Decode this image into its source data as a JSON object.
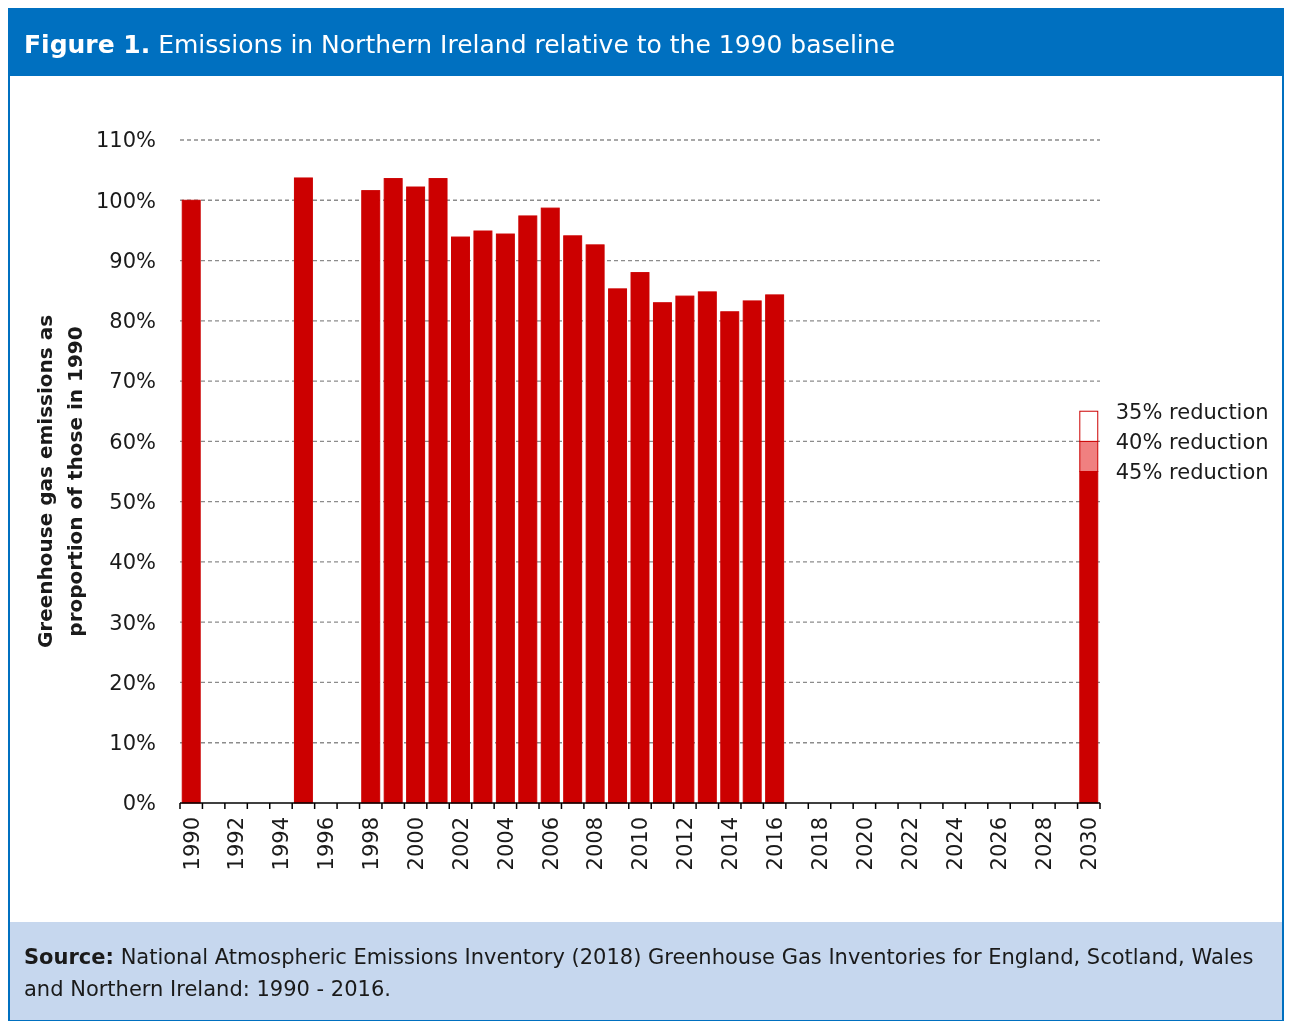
{
  "chart_data": {
    "type": "bar",
    "stacked": true,
    "title": "Figure 1. Emissions in Northern Ireland relative to the 1990 baseline",
    "ylabel": "Greenhouse gas emissions as proportion of those in 1990",
    "categories": [
      "1990",
      null,
      "1992",
      null,
      "1994",
      null,
      "1996",
      null,
      "1998",
      null,
      "2000",
      null,
      "2002",
      null,
      "2004",
      null,
      "2006",
      null,
      "2008",
      null,
      "2010",
      null,
      "2012",
      null,
      "2014",
      null,
      "2016",
      null,
      "2018",
      null,
      "2020",
      null,
      "2022",
      null,
      "2024",
      null,
      "2026",
      null,
      "2028",
      null,
      "2030"
    ],
    "series": [
      {
        "color": "#cc0000",
        "values": [
          100,
          null,
          null,
          null,
          null,
          103.7,
          null,
          null,
          101.6,
          103.6,
          102.2,
          103.6,
          93.9,
          94.9,
          94.4,
          97.4,
          98.7,
          94.1,
          92.6,
          85.3,
          88.0,
          83.0,
          84.1,
          84.8,
          81.5,
          83.3,
          84.3,
          null,
          null,
          null,
          null,
          null,
          null,
          null,
          null,
          null,
          null,
          null,
          null,
          null,
          55
        ]
      },
      {
        "color": "#f08080",
        "values": [
          null,
          null,
          null,
          null,
          null,
          null,
          null,
          null,
          null,
          null,
          null,
          null,
          null,
          null,
          null,
          null,
          null,
          null,
          null,
          null,
          null,
          null,
          null,
          null,
          null,
          null,
          null,
          null,
          null,
          null,
          null,
          null,
          null,
          null,
          null,
          null,
          null,
          null,
          null,
          null,
          5
        ]
      },
      {
        "color": "#ffffff",
        "values": [
          null,
          null,
          null,
          null,
          null,
          null,
          null,
          null,
          null,
          null,
          null,
          null,
          null,
          null,
          null,
          null,
          null,
          null,
          null,
          null,
          null,
          null,
          null,
          null,
          null,
          null,
          null,
          null,
          null,
          null,
          null,
          null,
          null,
          null,
          null,
          null,
          null,
          null,
          null,
          null,
          5
        ]
      }
    ],
    "ylim": [
      0,
      110
    ],
    "yticks": [
      {
        "value": 0,
        "label": "0%"
      },
      {
        "value": 10,
        "label": "10%"
      },
      {
        "value": 20,
        "label": "20%"
      },
      {
        "value": 30,
        "label": "30%"
      },
      {
        "value": 40,
        "label": "40%"
      },
      {
        "value": 50,
        "label": "50%"
      },
      {
        "value": 60,
        "label": "60%"
      },
      {
        "value": 70,
        "label": "70%"
      },
      {
        "value": 80,
        "label": "80%"
      },
      {
        "value": 90,
        "label": "90%"
      },
      {
        "value": 100,
        "label": "100%"
      },
      {
        "value": 110,
        "label": "110%"
      }
    ],
    "grid": "y",
    "annotations": [
      {
        "text": "35% reduction",
        "x": "2030",
        "y": 65
      },
      {
        "text": "40% reduction",
        "x": "2030",
        "y": 60
      },
      {
        "text": "45% reduction",
        "x": "2030",
        "y": 55
      },
      "Source: National Atmospheric Emissions Inventory (2018) Greenhouse Gas Inventories for England, Scotland, Wales and Northern Ireland: 1990 - 2016."
    ]
  }
}
